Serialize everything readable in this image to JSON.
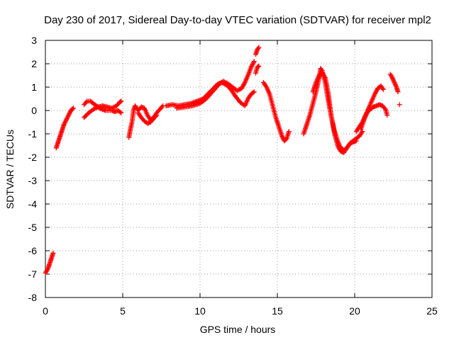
{
  "chart_data": {
    "type": "scatter",
    "title": "Day 230 of 2017, Sidereal Day-to-day VTEC variation (SDTVAR) for receiver mpl2",
    "xlabel": "GPS time / hours",
    "ylabel": "SDTVAR / TECUs",
    "xlim": [
      0,
      25
    ],
    "ylim": [
      -8,
      3
    ],
    "xticks": [
      0,
      5,
      10,
      15,
      20,
      25
    ],
    "yticks": [
      -8,
      -7,
      -6,
      -5,
      -4,
      -3,
      -2,
      -1,
      0,
      1,
      2,
      3
    ],
    "grid": true,
    "legend": "none",
    "marker": "plus",
    "color": "#ff0000",
    "series": [
      {
        "segments": [
          {
            "x": [
              0.0,
              0.1,
              0.2,
              0.3,
              0.4,
              0.5
            ],
            "y": [
              -6.95,
              -6.85,
              -6.7,
              -6.5,
              -6.3,
              -6.1
            ]
          },
          {
            "x": [
              0.7,
              0.8,
              0.9,
              1.0,
              1.1,
              1.2,
              1.35,
              1.5,
              1.65,
              1.8
            ],
            "y": [
              -1.6,
              -1.4,
              -1.2,
              -1.0,
              -0.8,
              -0.6,
              -0.4,
              -0.2,
              0.0,
              0.1
            ]
          },
          {
            "x": [
              2.5,
              2.7,
              2.9,
              3.1,
              3.3,
              3.5,
              3.7,
              3.9,
              4.1,
              4.3,
              4.5,
              4.7,
              4.9
            ],
            "y": [
              0.25,
              0.4,
              0.4,
              0.3,
              0.2,
              0.1,
              0.05,
              0.0,
              0.0,
              0.0,
              -0.05,
              0.0,
              -0.1
            ]
          },
          {
            "x": [
              2.5,
              2.8,
              3.1,
              3.4,
              3.7,
              4.0,
              4.3,
              4.6,
              4.8,
              4.9
            ],
            "y": [
              -0.3,
              -0.1,
              0.05,
              0.15,
              0.2,
              0.15,
              0.1,
              0.2,
              0.35,
              0.4
            ]
          },
          {
            "x": [
              5.4,
              5.5,
              5.6,
              5.7,
              5.8,
              5.9,
              6.0,
              6.2,
              6.4,
              6.6,
              6.8,
              7.0,
              7.2,
              7.4,
              7.6
            ],
            "y": [
              -1.15,
              -0.8,
              -0.5,
              0.0,
              0.2,
              0.1,
              0.0,
              0.15,
              0.1,
              -0.2,
              -0.4,
              -0.3,
              -0.1,
              0.05,
              0.2
            ]
          },
          {
            "x": [
              6.0,
              6.2,
              6.4,
              6.6,
              6.8,
              7.0,
              7.2
            ],
            "y": [
              -0.1,
              -0.3,
              -0.45,
              -0.55,
              -0.5,
              -0.35,
              -0.2
            ]
          },
          {
            "x": [
              7.8,
              8.2,
              8.6,
              9.0,
              9.4,
              9.8,
              10.2,
              10.5,
              10.8,
              11.0,
              11.2,
              11.4,
              11.7,
              12.0,
              12.3,
              12.6,
              12.9,
              13.1,
              13.3,
              13.5
            ],
            "y": [
              0.2,
              0.25,
              0.2,
              0.25,
              0.3,
              0.4,
              0.5,
              0.7,
              0.9,
              1.05,
              1.15,
              1.2,
              1.1,
              0.9,
              0.6,
              0.35,
              0.2,
              0.5,
              0.7,
              0.8
            ]
          },
          {
            "x": [
              8.5,
              9.0,
              9.5,
              10.0,
              10.4,
              10.8,
              11.2,
              11.5,
              11.8,
              12.1,
              12.4,
              12.7,
              12.9,
              13.1,
              13.3,
              13.5
            ],
            "y": [
              0.1,
              0.15,
              0.2,
              0.3,
              0.5,
              0.8,
              1.1,
              1.25,
              1.15,
              1.0,
              0.85,
              0.95,
              1.2,
              1.5,
              1.85,
              2.1
            ]
          },
          {
            "x": [
              13.6,
              13.7,
              13.8
            ],
            "y": [
              2.4,
              2.6,
              2.7
            ]
          },
          {
            "x": [
              13.6,
              13.7,
              13.8
            ],
            "y": [
              1.6,
              1.85,
              1.9
            ]
          },
          {
            "x": [
              14.1,
              14.3,
              14.5,
              14.7,
              14.9,
              15.1,
              15.3,
              15.45,
              15.6,
              15.75
            ],
            "y": [
              1.2,
              1.0,
              0.7,
              0.2,
              -0.3,
              -0.7,
              -1.1,
              -1.3,
              -1.2,
              -0.9
            ]
          },
          {
            "x": [
              16.7,
              16.9,
              17.1,
              17.3,
              17.5,
              17.7,
              17.8,
              17.9,
              18.1,
              18.3,
              18.5,
              18.7,
              18.9,
              19.1,
              19.3,
              19.5,
              19.7,
              19.9,
              20.1,
              20.3,
              20.5
            ],
            "y": [
              -1.0,
              -0.6,
              -0.2,
              0.3,
              0.8,
              1.4,
              1.8,
              1.7,
              1.2,
              0.4,
              -0.3,
              -0.9,
              -1.3,
              -1.6,
              -1.7,
              -1.6,
              -1.4,
              -1.3,
              -1.2,
              -1.1,
              -0.9
            ]
          },
          {
            "x": [
              17.3,
              17.5,
              17.7,
              17.9,
              18.1,
              18.3,
              18.5,
              18.7,
              18.9,
              19.1,
              19.3,
              19.5,
              19.7,
              19.9,
              20.1
            ],
            "y": [
              0.8,
              1.2,
              1.5,
              1.6,
              1.4,
              0.7,
              -0.3,
              -1.0,
              -1.5,
              -1.75,
              -1.8,
              -1.6,
              -1.4,
              -1.35,
              -1.3
            ]
          },
          {
            "x": [
              20.1,
              20.3,
              20.5,
              20.7,
              20.9,
              21.1,
              21.3,
              21.5,
              21.7,
              21.85
            ],
            "y": [
              -0.9,
              -0.7,
              -0.5,
              -0.2,
              0.1,
              0.4,
              0.7,
              0.95,
              1.05,
              0.9
            ]
          },
          {
            "x": [
              20.4,
              20.6,
              20.8,
              21.0,
              21.2,
              21.4,
              21.6,
              21.8,
              22.0,
              22.1
            ],
            "y": [
              -0.8,
              -0.4,
              -0.1,
              0.05,
              0.15,
              0.2,
              0.25,
              0.2,
              0.05,
              -0.2
            ]
          },
          {
            "x": [
              22.3,
              22.4,
              22.5,
              22.6,
              22.7,
              22.8
            ],
            "y": [
              1.55,
              1.45,
              1.3,
              1.15,
              1.0,
              0.8
            ]
          },
          {
            "x": [
              22.9
            ],
            "y": [
              0.25
            ]
          }
        ]
      }
    ]
  }
}
